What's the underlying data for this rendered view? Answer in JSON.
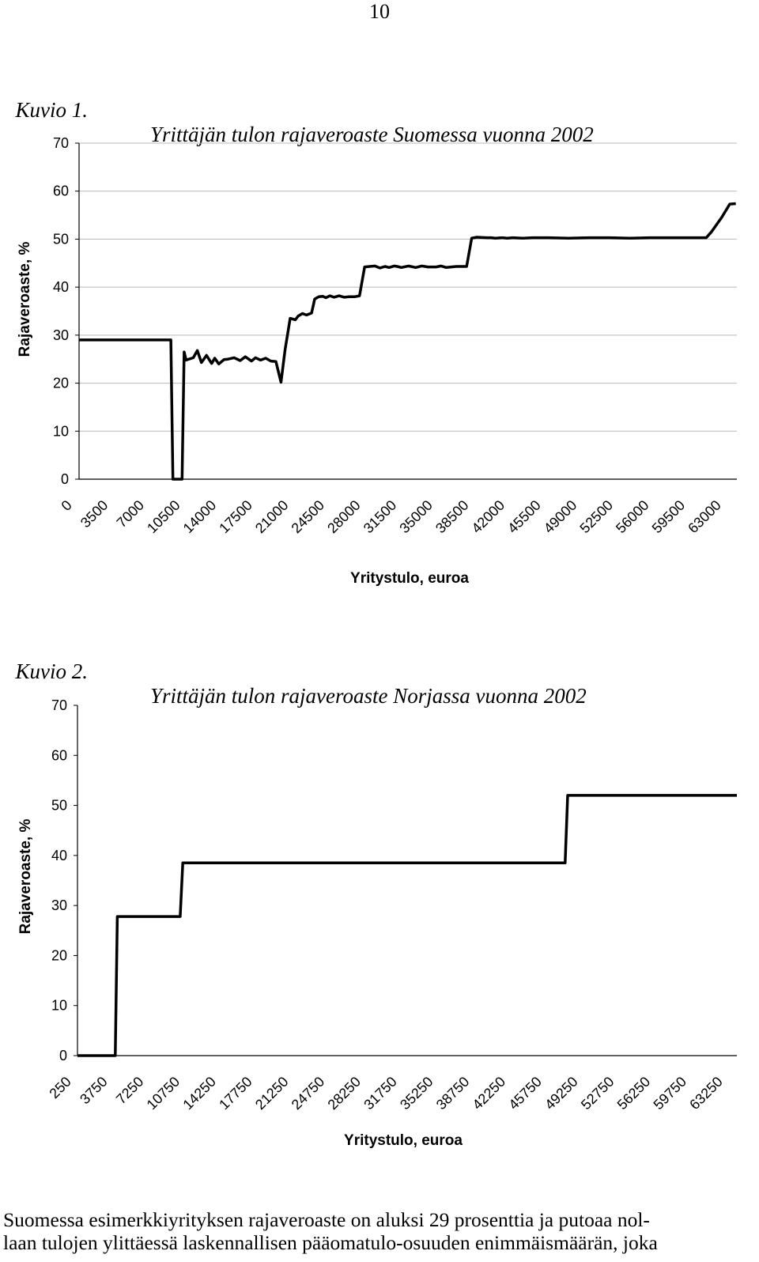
{
  "page_number": "10",
  "figures": [
    {
      "caption_label": "Kuvio 1.",
      "caption_title": "Yrittäjän tulon rajaveroaste Suomessa vuonna 2002"
    },
    {
      "caption_label": "Kuvio 2.",
      "caption_title": "Yrittäjän tulon rajaveroaste Norjassa vuonna 2002"
    }
  ],
  "chart_data": [
    {
      "type": "line",
      "title": "Yrittäjän tulon rajaveroaste Suomessa vuonna 2002",
      "xlabel": "Yritystulo, euroa",
      "ylabel": "Rajaveroaste, %",
      "ylim": [
        0,
        70
      ],
      "yticks": [
        "0",
        "10",
        "20",
        "30",
        "40",
        "50",
        "60",
        "70"
      ],
      "xticks": [
        "0",
        "3500",
        "7000",
        "10500",
        "14000",
        "17500",
        "21000",
        "24500",
        "28000",
        "31500",
        "35000",
        "38500",
        "42000",
        "45500",
        "49000",
        "52500",
        "56000",
        "59500",
        "63000"
      ],
      "xlim": [
        0,
        64500
      ],
      "grid": "horizontal",
      "series": [
        {
          "x": [
            0,
            9000,
            9200,
            10100,
            10300,
            10500,
            11200,
            11600,
            12000,
            12500,
            13000,
            13300,
            13700,
            14200,
            14600,
            15200,
            15800,
            16300,
            16900,
            17300,
            17800,
            18300,
            18800,
            19300,
            19800,
            20200,
            20700,
            21200,
            21500,
            21900,
            22300,
            22800,
            23100,
            23500,
            23900,
            24200,
            24600,
            25000,
            25500,
            26000,
            26500,
            27000,
            27500,
            28000,
            29000,
            29500,
            30000,
            30400,
            30900,
            31200,
            31600,
            32300,
            33000,
            33600,
            34200,
            35000,
            35500,
            36000,
            36500,
            37000,
            38000,
            38500,
            39000,
            40000,
            40400,
            40800,
            41500,
            42000,
            42500,
            43500,
            44500,
            46000,
            48000,
            50000,
            52000,
            54000,
            56000,
            58000,
            60000,
            61500,
            62000,
            63000,
            63800,
            64400
          ],
          "y": [
            29,
            29,
            0,
            0,
            26.5,
            24.8,
            25.3,
            26.8,
            24.3,
            25.8,
            24.1,
            25.2,
            24,
            24.9,
            25,
            25.3,
            24.7,
            25.5,
            24.6,
            25.3,
            24.8,
            25.2,
            24.6,
            24.5,
            20.2,
            27,
            33.5,
            33.2,
            34,
            34.5,
            34.2,
            34.6,
            37.5,
            38,
            38.1,
            37.8,
            38.2,
            37.9,
            38.2,
            37.9,
            38,
            38,
            38.2,
            44.2,
            44.4,
            44,
            44.3,
            44.1,
            44.4,
            44.3,
            44.1,
            44.4,
            44.1,
            44.4,
            44.2,
            44.2,
            44.4,
            44.1,
            44.2,
            44.3,
            44.3,
            50.2,
            50.4,
            50.3,
            50.3,
            50.2,
            50.3,
            50.2,
            50.3,
            50.2,
            50.3,
            50.3,
            50.2,
            50.3,
            50.3,
            50.2,
            50.3,
            50.3,
            50.3,
            50.3,
            51.5,
            54.5,
            57.3,
            57.4
          ]
        }
      ]
    },
    {
      "type": "line",
      "title": "Yrittäjän tulon rajaveroaste Norjassa vuonna 2002",
      "xlabel": "Yritystulo, euroa",
      "ylabel": "Rajaveroaste, %",
      "ylim": [
        0,
        70
      ],
      "yticks": [
        "0",
        "10",
        "20",
        "30",
        "40",
        "50",
        "60",
        "70"
      ],
      "xticks": [
        "250",
        "3750",
        "7250",
        "10750",
        "14250",
        "17750",
        "21250",
        "24750",
        "28250",
        "31750",
        "35250",
        "38750",
        "42250",
        "45750",
        "49250",
        "52750",
        "56250",
        "59750",
        "63250"
      ],
      "xlim": [
        0,
        64500
      ],
      "grid": "none",
      "series": [
        {
          "x": [
            0,
            3700,
            3900,
            10050,
            10300,
            47700,
            47950,
            64500
          ],
          "y": [
            0,
            0,
            27.8,
            27.8,
            38.5,
            38.5,
            52.0,
            52.0
          ]
        }
      ]
    }
  ],
  "paragraph": [
    "Suomessa esimerkkiyrityksen rajaveroaste on aluksi 29 prosenttia ja putoaa nol-",
    "laan tulojen ylittäessä laskennallisen pääomatulo-osuuden enimmäismäärän, joka"
  ]
}
